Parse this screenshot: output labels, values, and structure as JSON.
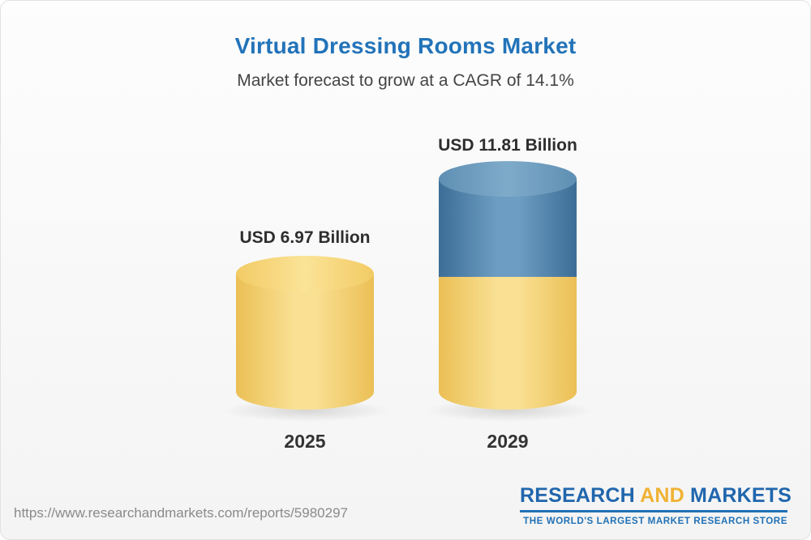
{
  "header": {
    "title": "Virtual Dressing Rooms Market",
    "subtitle": "Market forecast to grow at a CAGR of 14.1%"
  },
  "chart_data": {
    "type": "bar",
    "title": "Virtual Dressing Rooms Market",
    "subtitle": "Market forecast to grow at a CAGR of 14.1%",
    "unit": "USD Billion",
    "cagr_percent": 14.1,
    "categories": [
      "2025",
      "2029"
    ],
    "values": [
      6.97,
      11.81
    ],
    "bars": [
      {
        "year": "2025",
        "value": 6.97,
        "label": "USD 6.97 Billion",
        "color": "#f0c75e"
      },
      {
        "year": "2029",
        "value": 11.81,
        "label": "USD 11.81 Billion",
        "base_color": "#f0c75e",
        "growth_color": "#4c80a8"
      }
    ],
    "legend": "off",
    "grid": "off",
    "bar_style": "cylinder"
  },
  "colors": {
    "title_blue": "#2273b9",
    "subtitle_gray": "#454545",
    "yellow": "#f0c75e",
    "blue": "#4c80a8",
    "logo_blue": "#2066ad",
    "logo_gold": "#f0b234"
  },
  "footer": {
    "url": "https://www.researchandmarkets.com/reports/5980297",
    "logo": {
      "part1": "RESEARCH ",
      "part2": "AND ",
      "part3": "MARKETS",
      "tagline": "THE WORLD'S LARGEST MARKET RESEARCH STORE"
    }
  }
}
